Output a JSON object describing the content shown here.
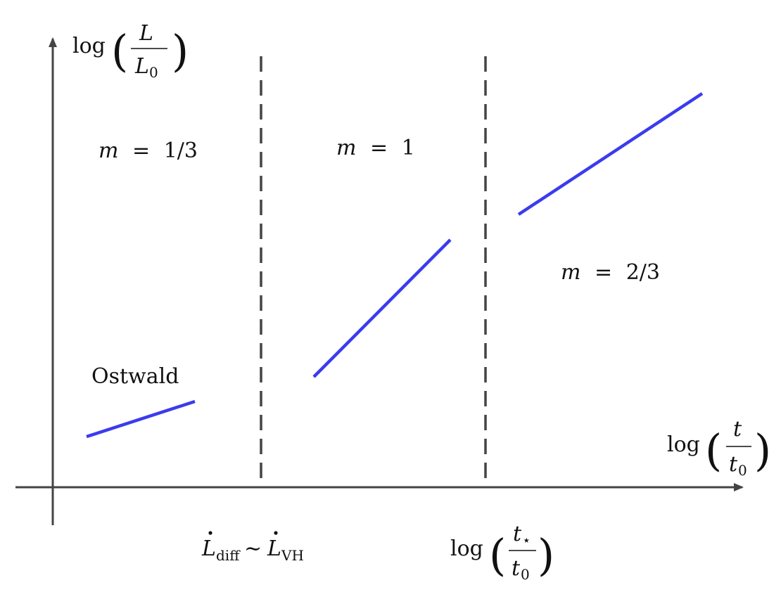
{
  "diagram": {
    "y_axis_label": {
      "prefix": "log",
      "numerator": "L",
      "denominator_base": "L",
      "denominator_sub": "0"
    },
    "x_axis_label": {
      "prefix": "log",
      "numerator": "t",
      "denominator_base": "t",
      "denominator_sub": "0"
    },
    "regions": [
      {
        "m_symbol": "m",
        "eq": "=",
        "value": "1/3"
      },
      {
        "m_symbol": "m",
        "eq": "=",
        "value": "1"
      },
      {
        "m_symbol": "m",
        "eq": "=",
        "value": "2/3"
      }
    ],
    "regime_label": "Ostwald",
    "boundary_1_label": {
      "lhs_base": "L",
      "lhs_sub": "diff",
      "relation": "∼",
      "rhs_base": "L",
      "rhs_sub": "VH"
    },
    "boundary_2_label": {
      "prefix": "log",
      "numerator_base": "t",
      "numerator_sub": "⋆",
      "denominator_base": "t",
      "denominator_sub": "0"
    },
    "colors": {
      "segment": "#3b3bef",
      "axis": "#444444",
      "divider": "#444444"
    }
  }
}
